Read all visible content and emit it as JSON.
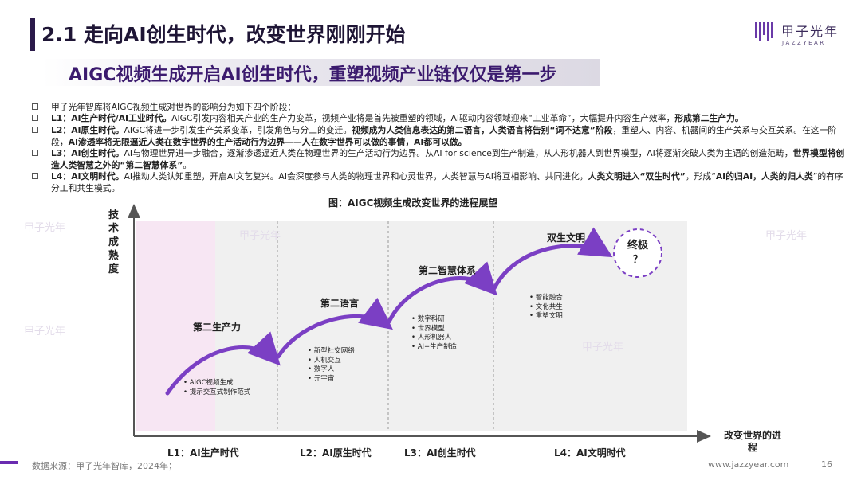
{
  "header": {
    "title": "2.1 走向AI创生时代，改变世界刚刚开始",
    "subtitle": "AIGC视频生成开启AI创生时代，重塑视频产业链仅仅是第一步",
    "logo_cn": "甲子光年",
    "logo_en": "JAZZYEAR"
  },
  "body": {
    "intro": "甲子光年智库将AIGC视频生成对世界的影响分为如下四个阶段：",
    "l1": {
      "head": "L1：AI生产时代/AI工业时代。",
      "text": "AIGC引发内容相关产业的生产力变革，视频产业将是首先被重塑的领域，AI驱动内容领域迎来“工业革命”，大幅提升内容生产效率，",
      "bold_end": "形成第二生产力。"
    },
    "l2": {
      "head": "L2：AI原生时代。",
      "text1": "AIGC将进一步引发生产关系变革，引发角色与分工的变迁。",
      "bold1": "视频成为人类信息表达的第二语言，人类语言将告别“词不达意”阶段",
      "text2": "，重塑人、内容、机器间的生产关系与交互关系。在这一阶段，",
      "bold2": "AI渗透率将无限逼近人类在数字世界的生产活动行为边界——人在数字世界可以做的事情，AI都可以做。"
    },
    "l3": {
      "head": "L3：AI创生时代。",
      "text1": "AI与物理世界进一步融合，逐渐渗透逼近人类在物理世界的生产活动行为边界。从AI for science到生产制造，从人形机器人到世界模型，AI将逐渐突破人类为主语的创造范畴，",
      "bold1": "世界模型将创造人类智慧之外的“第二智慧体系”",
      "text2": "。"
    },
    "l4": {
      "head": "L4：AI文明时代。",
      "text1": "AI推动人类认知重塑，开启AI文艺复兴。AI会深度参与人类的物理世界和心灵世界，人类智慧与AI将互相影响、共同进化，",
      "bold1": "人类文明进入“双生时代”",
      "text2": "，形成“",
      "bold2": "AI的归AI，人类的归人类",
      "text3": "”的有序分工和共生模式。"
    }
  },
  "figure": {
    "title": "图：AIGC视频生成改变世界的进程展望",
    "y_label": "技术成熟度",
    "x_label": "改变世界的进程",
    "eras": [
      "L1：AI生产时代",
      "L2：AI原生时代",
      "L3：AI创生时代",
      "L4：AI文明时代"
    ],
    "stages": {
      "s1": "第二生产力",
      "s2": "第二语言",
      "s3": "第二智慧体系",
      "s4": "双生文明",
      "ultimate_line1": "终极",
      "ultimate_line2": "？"
    },
    "bullets": {
      "b1": [
        "AIGC视频生成",
        "提示交互式制作范式"
      ],
      "b2": [
        "新型社交网络",
        "人机交互",
        "数字人",
        "元宇宙"
      ],
      "b3": [
        "数字科研",
        "世界模型",
        "人形机器人",
        "AI+生产制造"
      ],
      "b4": [
        "智能融合",
        "文化共生",
        "重塑文明"
      ]
    },
    "colors": {
      "accent": "#7b3fc4",
      "l1_band": "#f7e6f3",
      "band": "#f0f0f0"
    }
  },
  "footer": {
    "source": "数据来源：甲子光年智库，2024年；",
    "url": "www.jazzyear.com",
    "page": "16"
  }
}
